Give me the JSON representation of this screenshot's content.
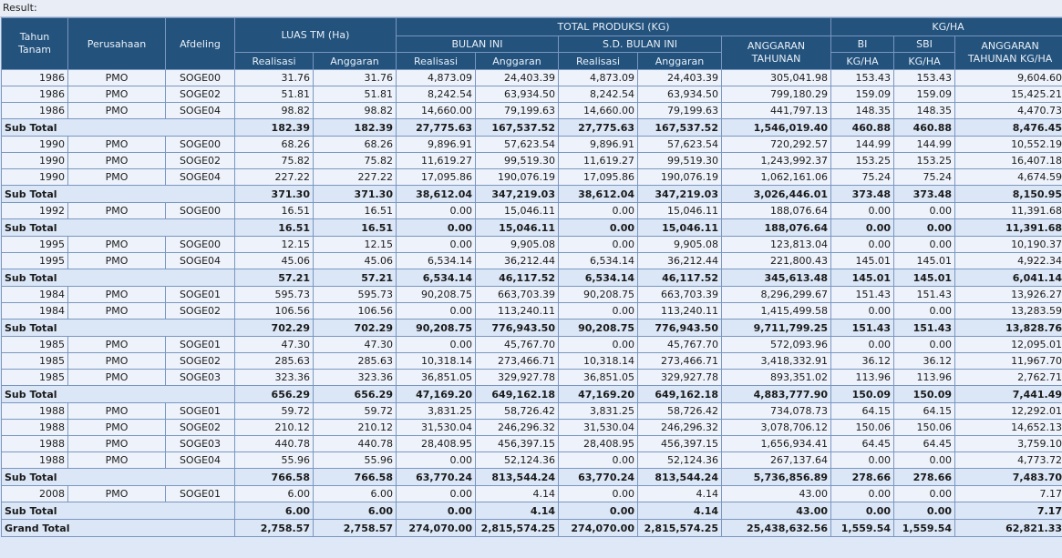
{
  "result_label": "Result:",
  "headers": {
    "tahun_tanam": "Tahun Tanam",
    "perusahaan": "Perusahaan",
    "afdeling": "Afdeling",
    "luas_tm": "LUAS TM (Ha)",
    "total_produksi": "TOTAL PRODUKSI (KG)",
    "kg_ha": "KG/HA",
    "bulan_ini": "BULAN INI",
    "sd_bulan_ini": "S.D. BULAN INI",
    "anggaran_tahunan": "ANGGARAN TAHUNAN",
    "bi": "BI",
    "sbi": "SBI",
    "anggaran_tahunan_kgha": "ANGGARAN TAHUNAN KG/HA",
    "realisasi": "Realisasi",
    "anggaran": "Anggaran",
    "kgha_unit": "KG/HA"
  },
  "rows": [
    {
      "type": "data",
      "tahun": "1986",
      "perusahaan": "PMO",
      "afdeling": "SOGE00",
      "luas_real": "31.76",
      "luas_angg": "31.76",
      "bi_real": "4,873.09",
      "bi_angg": "24,403.39",
      "sbi_real": "4,873.09",
      "sbi_angg": "24,403.39",
      "angg_tahunan": "305,041.98",
      "kg_bi": "153.43",
      "kg_sbi": "153.43",
      "kg_angg": "9,604.60"
    },
    {
      "type": "data",
      "tahun": "1986",
      "perusahaan": "PMO",
      "afdeling": "SOGE02",
      "luas_real": "51.81",
      "luas_angg": "51.81",
      "bi_real": "8,242.54",
      "bi_angg": "63,934.50",
      "sbi_real": "8,242.54",
      "sbi_angg": "63,934.50",
      "angg_tahunan": "799,180.29",
      "kg_bi": "159.09",
      "kg_sbi": "159.09",
      "kg_angg": "15,425.21"
    },
    {
      "type": "data",
      "tahun": "1986",
      "perusahaan": "PMO",
      "afdeling": "SOGE04",
      "luas_real": "98.82",
      "luas_angg": "98.82",
      "bi_real": "14,660.00",
      "bi_angg": "79,199.63",
      "sbi_real": "14,660.00",
      "sbi_angg": "79,199.63",
      "angg_tahunan": "441,797.13",
      "kg_bi": "148.35",
      "kg_sbi": "148.35",
      "kg_angg": "4,470.73"
    },
    {
      "type": "sub",
      "label": "Sub Total",
      "luas_real": "182.39",
      "luas_angg": "182.39",
      "bi_real": "27,775.63",
      "bi_angg": "167,537.52",
      "sbi_real": "27,775.63",
      "sbi_angg": "167,537.52",
      "angg_tahunan": "1,546,019.40",
      "kg_bi": "460.88",
      "kg_sbi": "460.88",
      "kg_angg": "8,476.45"
    },
    {
      "type": "data",
      "tahun": "1990",
      "perusahaan": "PMO",
      "afdeling": "SOGE00",
      "luas_real": "68.26",
      "luas_angg": "68.26",
      "bi_real": "9,896.91",
      "bi_angg": "57,623.54",
      "sbi_real": "9,896.91",
      "sbi_angg": "57,623.54",
      "angg_tahunan": "720,292.57",
      "kg_bi": "144.99",
      "kg_sbi": "144.99",
      "kg_angg": "10,552.19"
    },
    {
      "type": "data",
      "tahun": "1990",
      "perusahaan": "PMO",
      "afdeling": "SOGE02",
      "luas_real": "75.82",
      "luas_angg": "75.82",
      "bi_real": "11,619.27",
      "bi_angg": "99,519.30",
      "sbi_real": "11,619.27",
      "sbi_angg": "99,519.30",
      "angg_tahunan": "1,243,992.37",
      "kg_bi": "153.25",
      "kg_sbi": "153.25",
      "kg_angg": "16,407.18"
    },
    {
      "type": "data",
      "tahun": "1990",
      "perusahaan": "PMO",
      "afdeling": "SOGE04",
      "luas_real": "227.22",
      "luas_angg": "227.22",
      "bi_real": "17,095.86",
      "bi_angg": "190,076.19",
      "sbi_real": "17,095.86",
      "sbi_angg": "190,076.19",
      "angg_tahunan": "1,062,161.06",
      "kg_bi": "75.24",
      "kg_sbi": "75.24",
      "kg_angg": "4,674.59"
    },
    {
      "type": "sub",
      "label": "Sub Total",
      "luas_real": "371.30",
      "luas_angg": "371.30",
      "bi_real": "38,612.04",
      "bi_angg": "347,219.03",
      "sbi_real": "38,612.04",
      "sbi_angg": "347,219.03",
      "angg_tahunan": "3,026,446.01",
      "kg_bi": "373.48",
      "kg_sbi": "373.48",
      "kg_angg": "8,150.95"
    },
    {
      "type": "data",
      "tahun": "1992",
      "perusahaan": "PMO",
      "afdeling": "SOGE00",
      "luas_real": "16.51",
      "luas_angg": "16.51",
      "bi_real": "0.00",
      "bi_angg": "15,046.11",
      "sbi_real": "0.00",
      "sbi_angg": "15,046.11",
      "angg_tahunan": "188,076.64",
      "kg_bi": "0.00",
      "kg_sbi": "0.00",
      "kg_angg": "11,391.68"
    },
    {
      "type": "sub",
      "label": "Sub Total",
      "luas_real": "16.51",
      "luas_angg": "16.51",
      "bi_real": "0.00",
      "bi_angg": "15,046.11",
      "sbi_real": "0.00",
      "sbi_angg": "15,046.11",
      "angg_tahunan": "188,076.64",
      "kg_bi": "0.00",
      "kg_sbi": "0.00",
      "kg_angg": "11,391.68"
    },
    {
      "type": "data",
      "tahun": "1995",
      "perusahaan": "PMO",
      "afdeling": "SOGE00",
      "luas_real": "12.15",
      "luas_angg": "12.15",
      "bi_real": "0.00",
      "bi_angg": "9,905.08",
      "sbi_real": "0.00",
      "sbi_angg": "9,905.08",
      "angg_tahunan": "123,813.04",
      "kg_bi": "0.00",
      "kg_sbi": "0.00",
      "kg_angg": "10,190.37"
    },
    {
      "type": "data",
      "tahun": "1995",
      "perusahaan": "PMO",
      "afdeling": "SOGE04",
      "luas_real": "45.06",
      "luas_angg": "45.06",
      "bi_real": "6,534.14",
      "bi_angg": "36,212.44",
      "sbi_real": "6,534.14",
      "sbi_angg": "36,212.44",
      "angg_tahunan": "221,800.43",
      "kg_bi": "145.01",
      "kg_sbi": "145.01",
      "kg_angg": "4,922.34"
    },
    {
      "type": "sub",
      "label": "Sub Total",
      "luas_real": "57.21",
      "luas_angg": "57.21",
      "bi_real": "6,534.14",
      "bi_angg": "46,117.52",
      "sbi_real": "6,534.14",
      "sbi_angg": "46,117.52",
      "angg_tahunan": "345,613.48",
      "kg_bi": "145.01",
      "kg_sbi": "145.01",
      "kg_angg": "6,041.14"
    },
    {
      "type": "data",
      "tahun": "1984",
      "perusahaan": "PMO",
      "afdeling": "SOGE01",
      "luas_real": "595.73",
      "luas_angg": "595.73",
      "bi_real": "90,208.75",
      "bi_angg": "663,703.39",
      "sbi_real": "90,208.75",
      "sbi_angg": "663,703.39",
      "angg_tahunan": "8,296,299.67",
      "kg_bi": "151.43",
      "kg_sbi": "151.43",
      "kg_angg": "13,926.27"
    },
    {
      "type": "data",
      "tahun": "1984",
      "perusahaan": "PMO",
      "afdeling": "SOGE02",
      "luas_real": "106.56",
      "luas_angg": "106.56",
      "bi_real": "0.00",
      "bi_angg": "113,240.11",
      "sbi_real": "0.00",
      "sbi_angg": "113,240.11",
      "angg_tahunan": "1,415,499.58",
      "kg_bi": "0.00",
      "kg_sbi": "0.00",
      "kg_angg": "13,283.59"
    },
    {
      "type": "sub",
      "label": "Sub Total",
      "luas_real": "702.29",
      "luas_angg": "702.29",
      "bi_real": "90,208.75",
      "bi_angg": "776,943.50",
      "sbi_real": "90,208.75",
      "sbi_angg": "776,943.50",
      "angg_tahunan": "9,711,799.25",
      "kg_bi": "151.43",
      "kg_sbi": "151.43",
      "kg_angg": "13,828.76"
    },
    {
      "type": "data",
      "tahun": "1985",
      "perusahaan": "PMO",
      "afdeling": "SOGE01",
      "luas_real": "47.30",
      "luas_angg": "47.30",
      "bi_real": "0.00",
      "bi_angg": "45,767.70",
      "sbi_real": "0.00",
      "sbi_angg": "45,767.70",
      "angg_tahunan": "572,093.96",
      "kg_bi": "0.00",
      "kg_sbi": "0.00",
      "kg_angg": "12,095.01"
    },
    {
      "type": "data",
      "tahun": "1985",
      "perusahaan": "PMO",
      "afdeling": "SOGE02",
      "luas_real": "285.63",
      "luas_angg": "285.63",
      "bi_real": "10,318.14",
      "bi_angg": "273,466.71",
      "sbi_real": "10,318.14",
      "sbi_angg": "273,466.71",
      "angg_tahunan": "3,418,332.91",
      "kg_bi": "36.12",
      "kg_sbi": "36.12",
      "kg_angg": "11,967.70"
    },
    {
      "type": "data",
      "tahun": "1985",
      "perusahaan": "PMO",
      "afdeling": "SOGE03",
      "luas_real": "323.36",
      "luas_angg": "323.36",
      "bi_real": "36,851.05",
      "bi_angg": "329,927.78",
      "sbi_real": "36,851.05",
      "sbi_angg": "329,927.78",
      "angg_tahunan": "893,351.02",
      "kg_bi": "113.96",
      "kg_sbi": "113.96",
      "kg_angg": "2,762.71"
    },
    {
      "type": "sub",
      "label": "Sub Total",
      "luas_real": "656.29",
      "luas_angg": "656.29",
      "bi_real": "47,169.20",
      "bi_angg": "649,162.18",
      "sbi_real": "47,169.20",
      "sbi_angg": "649,162.18",
      "angg_tahunan": "4,883,777.90",
      "kg_bi": "150.09",
      "kg_sbi": "150.09",
      "kg_angg": "7,441.49"
    },
    {
      "type": "data",
      "tahun": "1988",
      "perusahaan": "PMO",
      "afdeling": "SOGE01",
      "luas_real": "59.72",
      "luas_angg": "59.72",
      "bi_real": "3,831.25",
      "bi_angg": "58,726.42",
      "sbi_real": "3,831.25",
      "sbi_angg": "58,726.42",
      "angg_tahunan": "734,078.73",
      "kg_bi": "64.15",
      "kg_sbi": "64.15",
      "kg_angg": "12,292.01"
    },
    {
      "type": "data",
      "tahun": "1988",
      "perusahaan": "PMO",
      "afdeling": "SOGE02",
      "luas_real": "210.12",
      "luas_angg": "210.12",
      "bi_real": "31,530.04",
      "bi_angg": "246,296.32",
      "sbi_real": "31,530.04",
      "sbi_angg": "246,296.32",
      "angg_tahunan": "3,078,706.12",
      "kg_bi": "150.06",
      "kg_sbi": "150.06",
      "kg_angg": "14,652.13"
    },
    {
      "type": "data",
      "tahun": "1988",
      "perusahaan": "PMO",
      "afdeling": "SOGE03",
      "luas_real": "440.78",
      "luas_angg": "440.78",
      "bi_real": "28,408.95",
      "bi_angg": "456,397.15",
      "sbi_real": "28,408.95",
      "sbi_angg": "456,397.15",
      "angg_tahunan": "1,656,934.41",
      "kg_bi": "64.45",
      "kg_sbi": "64.45",
      "kg_angg": "3,759.10"
    },
    {
      "type": "data",
      "tahun": "1988",
      "perusahaan": "PMO",
      "afdeling": "SOGE04",
      "luas_real": "55.96",
      "luas_angg": "55.96",
      "bi_real": "0.00",
      "bi_angg": "52,124.36",
      "sbi_real": "0.00",
      "sbi_angg": "52,124.36",
      "angg_tahunan": "267,137.64",
      "kg_bi": "0.00",
      "kg_sbi": "0.00",
      "kg_angg": "4,773.72"
    },
    {
      "type": "sub",
      "label": "Sub Total",
      "luas_real": "766.58",
      "luas_angg": "766.58",
      "bi_real": "63,770.24",
      "bi_angg": "813,544.24",
      "sbi_real": "63,770.24",
      "sbi_angg": "813,544.24",
      "angg_tahunan": "5,736,856.89",
      "kg_bi": "278.66",
      "kg_sbi": "278.66",
      "kg_angg": "7,483.70"
    },
    {
      "type": "data",
      "tahun": "2008",
      "perusahaan": "PMO",
      "afdeling": "SOGE01",
      "luas_real": "6.00",
      "luas_angg": "6.00",
      "bi_real": "0.00",
      "bi_angg": "4.14",
      "sbi_real": "0.00",
      "sbi_angg": "4.14",
      "angg_tahunan": "43.00",
      "kg_bi": "0.00",
      "kg_sbi": "0.00",
      "kg_angg": "7.17"
    },
    {
      "type": "sub",
      "label": "Sub Total",
      "luas_real": "6.00",
      "luas_angg": "6.00",
      "bi_real": "0.00",
      "bi_angg": "4.14",
      "sbi_real": "0.00",
      "sbi_angg": "4.14",
      "angg_tahunan": "43.00",
      "kg_bi": "0.00",
      "kg_sbi": "0.00",
      "kg_angg": "7.17"
    },
    {
      "type": "grand",
      "label": "Grand Total",
      "luas_real": "2,758.57",
      "luas_angg": "2,758.57",
      "bi_real": "274,070.00",
      "bi_angg": "2,815,574.25",
      "sbi_real": "274,070.00",
      "sbi_angg": "2,815,574.25",
      "angg_tahunan": "25,438,632.56",
      "kg_bi": "1,559.54",
      "kg_sbi": "1,559.54",
      "kg_angg": "62,821.33"
    }
  ]
}
